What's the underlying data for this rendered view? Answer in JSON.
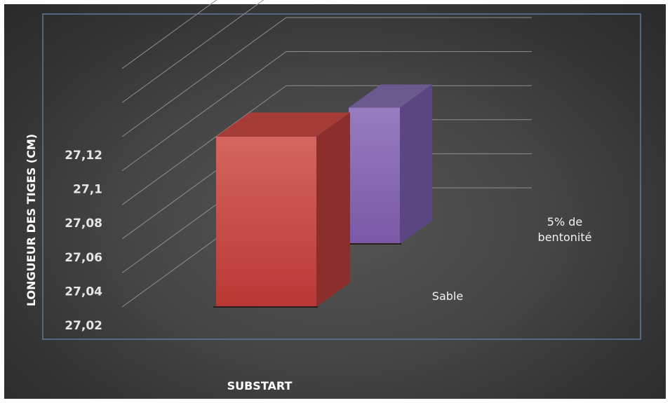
{
  "chart_data": {
    "type": "bar",
    "style": "3d-column",
    "title": "",
    "xlabel": "SUBSTART",
    "ylabel": "LONGUEUR DES TIGES (CM)",
    "y_ticks": [
      "27,02",
      "27,04",
      "27,06",
      "27,08",
      "27,1",
      "27,12"
    ],
    "ylim": [
      27.02,
      27.12
    ],
    "categories": [
      "Sable",
      "5% de bentonité"
    ],
    "category_lines": [
      [
        "Sable"
      ],
      [
        "5% de",
        "bentonité"
      ]
    ],
    "values": [
      27.12,
      27.1
    ],
    "colors": [
      "#c8413e",
      "#8a68b0"
    ],
    "grid": true,
    "legend": "none"
  }
}
